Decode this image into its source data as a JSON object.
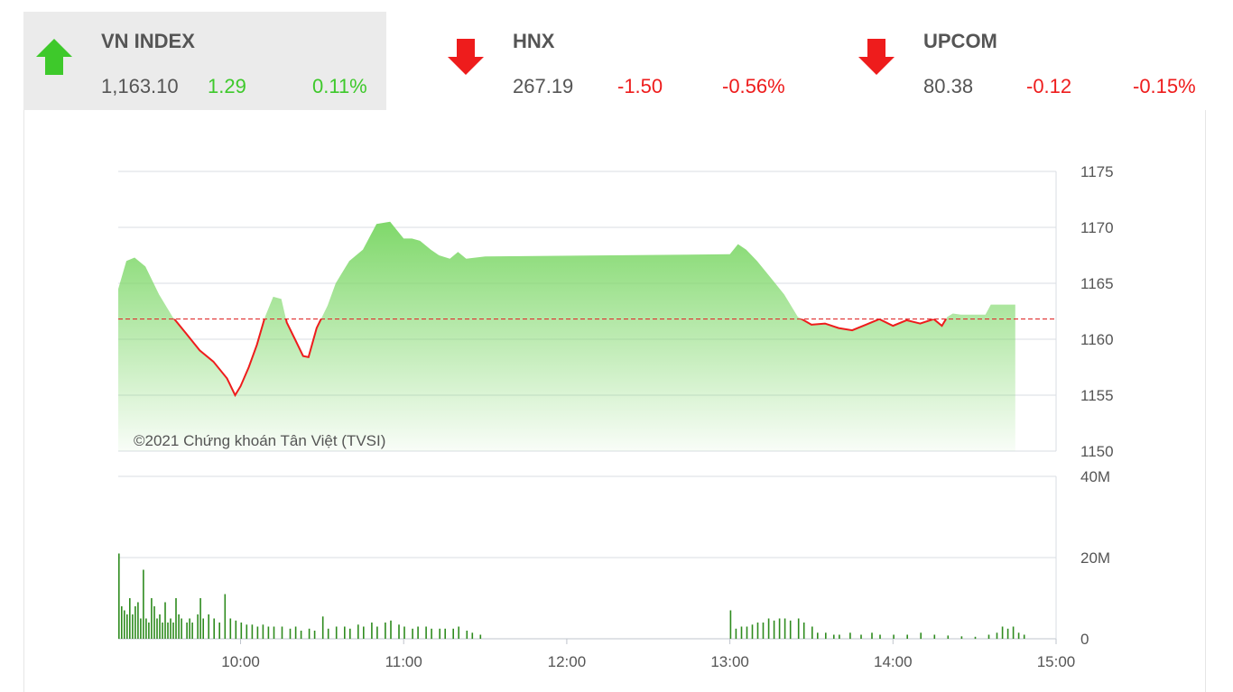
{
  "tickers": [
    {
      "name": "VN INDEX",
      "value": "1,163.10",
      "change": "1.29",
      "percent": "0.11%",
      "direction": "up",
      "icon": "arrow-up-icon"
    },
    {
      "name": "HNX",
      "value": "267.19",
      "change": "-1.50",
      "percent": "-0.56%",
      "direction": "down",
      "icon": "arrow-down-icon"
    },
    {
      "name": "UPCOM",
      "value": "80.38",
      "change": "-0.12",
      "percent": "-0.15%",
      "direction": "down",
      "icon": "arrow-down-icon"
    }
  ],
  "colors": {
    "up": "#3ec92b",
    "down": "#ee1c1c",
    "area": "#7fd86a",
    "volume": "#2e8b1e",
    "reference": "#e03030"
  },
  "chart_data": [
    {
      "type": "line",
      "series_kind": "area",
      "reference_value": 1161.81,
      "ylim": [
        1150,
        1175
      ],
      "yticks": [
        "1175",
        "1170",
        "1165",
        "1160",
        "1155",
        "1150"
      ],
      "x_label_format": "HH:MM",
      "copyright": "©2021 Chứng khoán Tân Việt (TVSI)",
      "points": [
        [
          "09:15",
          1164.5
        ],
        [
          "09:18",
          1167.0
        ],
        [
          "09:21",
          1167.3
        ],
        [
          "09:25",
          1166.5
        ],
        [
          "09:30",
          1164.0
        ],
        [
          "09:35",
          1162.0
        ],
        [
          "09:40",
          1160.5
        ],
        [
          "09:45",
          1159.0
        ],
        [
          "09:50",
          1158.0
        ],
        [
          "09:55",
          1156.5
        ],
        [
          "09:58",
          1155.0
        ],
        [
          "10:00",
          1155.8
        ],
        [
          "10:03",
          1157.5
        ],
        [
          "10:06",
          1159.5
        ],
        [
          "10:09",
          1162.0
        ],
        [
          "10:12",
          1163.8
        ],
        [
          "10:15",
          1163.6
        ],
        [
          "10:17",
          1161.5
        ],
        [
          "10:20",
          1160.0
        ],
        [
          "10:23",
          1158.5
        ],
        [
          "10:25",
          1158.4
        ],
        [
          "10:28",
          1161.0
        ],
        [
          "10:32",
          1163.0
        ],
        [
          "10:35",
          1165.0
        ],
        [
          "10:40",
          1167.0
        ],
        [
          "10:45",
          1168.0
        ],
        [
          "10:50",
          1170.3
        ],
        [
          "10:55",
          1170.5
        ],
        [
          "11:00",
          1169.0
        ],
        [
          "11:03",
          1169.0
        ],
        [
          "11:06",
          1168.8
        ],
        [
          "11:10",
          1168.0
        ],
        [
          "11:13",
          1167.5
        ],
        [
          "11:17",
          1167.2
        ],
        [
          "11:20",
          1167.8
        ],
        [
          "11:23",
          1167.2
        ],
        [
          "11:30",
          1167.4
        ],
        [
          "13:00",
          1167.6
        ],
        [
          "13:03",
          1168.5
        ],
        [
          "13:06",
          1168.0
        ],
        [
          "13:10",
          1167.0
        ],
        [
          "13:15",
          1165.5
        ],
        [
          "13:20",
          1164.0
        ],
        [
          "13:25",
          1162.0
        ],
        [
          "13:30",
          1161.3
        ],
        [
          "13:35",
          1161.4
        ],
        [
          "13:40",
          1161.0
        ],
        [
          "13:45",
          1160.8
        ],
        [
          "13:50",
          1161.3
        ],
        [
          "13:55",
          1161.8
        ],
        [
          "14:00",
          1161.2
        ],
        [
          "14:05",
          1161.7
        ],
        [
          "14:10",
          1161.4
        ],
        [
          "14:15",
          1161.8
        ],
        [
          "14:18",
          1161.2
        ],
        [
          "14:20",
          1162.0
        ],
        [
          "14:22",
          1162.3
        ],
        [
          "14:25",
          1162.2
        ],
        [
          "14:30",
          1162.2
        ],
        [
          "14:34",
          1162.2
        ],
        [
          "14:36",
          1163.1
        ],
        [
          "14:45",
          1163.1
        ]
      ]
    },
    {
      "type": "bar",
      "ylim": [
        0,
        40
      ],
      "yticks": [
        "40M",
        "20M",
        "0"
      ],
      "y_unit": "M",
      "x_ticks": [
        "10:00",
        "11:00",
        "12:00",
        "13:00",
        "14:00",
        "15:00"
      ],
      "volumes": [
        [
          "09:15",
          21
        ],
        [
          "09:16",
          8
        ],
        [
          "09:17",
          7
        ],
        [
          "09:18",
          6
        ],
        [
          "09:19",
          10
        ],
        [
          "09:20",
          6
        ],
        [
          "09:21",
          8
        ],
        [
          "09:22",
          9
        ],
        [
          "09:23",
          5
        ],
        [
          "09:24",
          17
        ],
        [
          "09:25",
          5
        ],
        [
          "09:26",
          4
        ],
        [
          "09:27",
          10
        ],
        [
          "09:28",
          8
        ],
        [
          "09:29",
          5
        ],
        [
          "09:30",
          6
        ],
        [
          "09:31",
          4
        ],
        [
          "09:32",
          9
        ],
        [
          "09:33",
          4
        ],
        [
          "09:34",
          5
        ],
        [
          "09:35",
          4
        ],
        [
          "09:36",
          10
        ],
        [
          "09:37",
          6
        ],
        [
          "09:38",
          5
        ],
        [
          "09:40",
          4
        ],
        [
          "09:41",
          5
        ],
        [
          "09:42",
          4
        ],
        [
          "09:44",
          6
        ],
        [
          "09:45",
          10
        ],
        [
          "09:46",
          5
        ],
        [
          "09:48",
          6
        ],
        [
          "09:50",
          5
        ],
        [
          "09:52",
          4
        ],
        [
          "09:54",
          11
        ],
        [
          "09:56",
          5
        ],
        [
          "09:58",
          4.5
        ],
        [
          "10:00",
          4
        ],
        [
          "10:02",
          3.5
        ],
        [
          "10:04",
          3.5
        ],
        [
          "10:06",
          3
        ],
        [
          "10:08",
          3.5
        ],
        [
          "10:10",
          3
        ],
        [
          "10:12",
          3
        ],
        [
          "10:15",
          3
        ],
        [
          "10:18",
          2.5
        ],
        [
          "10:20",
          3
        ],
        [
          "10:22",
          2
        ],
        [
          "10:25",
          2.5
        ],
        [
          "10:27",
          2
        ],
        [
          "10:30",
          5.5
        ],
        [
          "10:32",
          2.5
        ],
        [
          "10:35",
          3
        ],
        [
          "10:38",
          3
        ],
        [
          "10:40",
          2.5
        ],
        [
          "10:43",
          3.5
        ],
        [
          "10:45",
          3
        ],
        [
          "10:48",
          4
        ],
        [
          "10:50",
          3
        ],
        [
          "10:53",
          4
        ],
        [
          "10:55",
          4.5
        ],
        [
          "10:58",
          3.5
        ],
        [
          "11:00",
          3
        ],
        [
          "11:03",
          2.5
        ],
        [
          "11:05",
          3
        ],
        [
          "11:08",
          3
        ],
        [
          "11:10",
          2.5
        ],
        [
          "11:13",
          2.5
        ],
        [
          "11:15",
          2.5
        ],
        [
          "11:18",
          2.5
        ],
        [
          "11:20",
          3
        ],
        [
          "11:23",
          2
        ],
        [
          "11:25",
          1.5
        ],
        [
          "11:28",
          1
        ],
        [
          "13:00",
          7
        ],
        [
          "13:02",
          2.5
        ],
        [
          "13:04",
          3
        ],
        [
          "13:06",
          3
        ],
        [
          "13:08",
          3.5
        ],
        [
          "13:10",
          4
        ],
        [
          "13:12",
          4
        ],
        [
          "13:14",
          5
        ],
        [
          "13:16",
          4.5
        ],
        [
          "13:18",
          5
        ],
        [
          "13:20",
          5
        ],
        [
          "13:22",
          4.5
        ],
        [
          "13:25",
          5
        ],
        [
          "13:27",
          4
        ],
        [
          "13:30",
          3
        ],
        [
          "13:32",
          1.5
        ],
        [
          "13:35",
          1.5
        ],
        [
          "13:38",
          1
        ],
        [
          "13:40",
          1
        ],
        [
          "13:44",
          1.5
        ],
        [
          "13:48",
          1
        ],
        [
          "13:52",
          1.5
        ],
        [
          "13:55",
          1
        ],
        [
          "14:00",
          1
        ],
        [
          "14:05",
          1
        ],
        [
          "14:10",
          1.5
        ],
        [
          "14:15",
          1
        ],
        [
          "14:20",
          0.8
        ],
        [
          "14:25",
          0.6
        ],
        [
          "14:30",
          0.5
        ],
        [
          "14:35",
          1
        ],
        [
          "14:38",
          1.5
        ],
        [
          "14:40",
          3
        ],
        [
          "14:42",
          2.5
        ],
        [
          "14:44",
          3
        ],
        [
          "14:46",
          1.5
        ],
        [
          "14:48",
          1
        ]
      ]
    }
  ]
}
